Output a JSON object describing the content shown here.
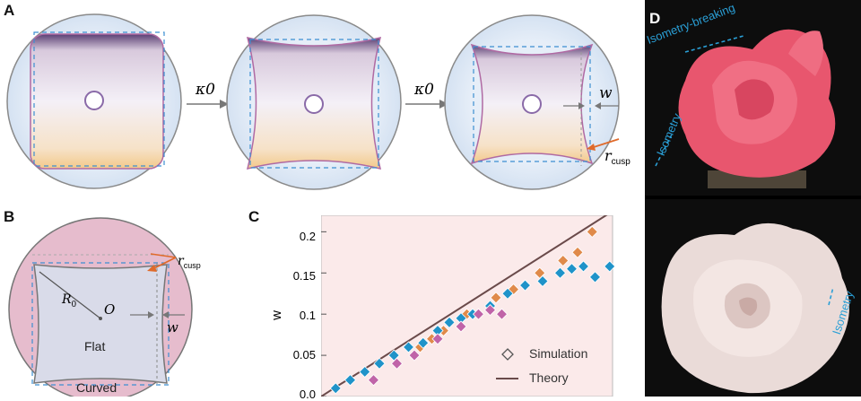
{
  "panels": {
    "a": {
      "letter": "A",
      "arrow1": "κ0",
      "arrow2": "κ0",
      "w_label": "w",
      "rcusp_main": "r",
      "rcusp_sub": "cusp"
    },
    "b": {
      "letter": "B",
      "rcusp_main": "r",
      "rcusp_sub": "cusp",
      "r0_main": "R",
      "r0_sub": "0",
      "origin": "O",
      "w_label": "w",
      "flat": "Flat",
      "curved": "Curved"
    },
    "c": {
      "letter": "C",
      "ylabel": "w",
      "yticks": [
        "0.2",
        "0.15",
        "0.1",
        "0.05",
        "0.0"
      ],
      "legend_sim": "Simulation",
      "legend_theory": "Theory"
    },
    "d": {
      "letter": "D",
      "isometry_breaking": "Isometry-breaking",
      "isometry_top": "Isometry",
      "isometry_bottom": "Isometry"
    }
  },
  "chart_data": {
    "type": "scatter",
    "ylabel": "w",
    "ylim": [
      0,
      0.22
    ],
    "xlim": [
      0,
      1
    ],
    "yticks": [
      0,
      0.05,
      0.1,
      0.15,
      0.2
    ],
    "legend": [
      "Simulation",
      "Theory"
    ],
    "legend_position": "bottom-right",
    "theory_line": {
      "x": [
        0,
        1
      ],
      "y": [
        0,
        0.225
      ]
    },
    "series": [
      {
        "color": "#e08a4a",
        "marker": "diamond",
        "points": [
          [
            0.34,
            0.06
          ],
          [
            0.38,
            0.07
          ],
          [
            0.42,
            0.08
          ],
          [
            0.5,
            0.1
          ],
          [
            0.6,
            0.12
          ],
          [
            0.66,
            0.13
          ],
          [
            0.75,
            0.15
          ],
          [
            0.83,
            0.165
          ],
          [
            0.88,
            0.175
          ],
          [
            0.93,
            0.2
          ]
        ]
      },
      {
        "color": "#1f93c9",
        "marker": "diamond",
        "points": [
          [
            0.05,
            0.01
          ],
          [
            0.1,
            0.02
          ],
          [
            0.15,
            0.03
          ],
          [
            0.2,
            0.04
          ],
          [
            0.25,
            0.05
          ],
          [
            0.3,
            0.06
          ],
          [
            0.35,
            0.065
          ],
          [
            0.4,
            0.08
          ],
          [
            0.44,
            0.09
          ],
          [
            0.48,
            0.095
          ],
          [
            0.52,
            0.1
          ],
          [
            0.58,
            0.11
          ],
          [
            0.64,
            0.125
          ],
          [
            0.7,
            0.135
          ],
          [
            0.76,
            0.14
          ],
          [
            0.82,
            0.15
          ],
          [
            0.86,
            0.155
          ],
          [
            0.9,
            0.158
          ],
          [
            0.94,
            0.145
          ],
          [
            0.99,
            0.158
          ]
        ]
      },
      {
        "color": "#c064a8",
        "marker": "diamond",
        "points": [
          [
            0.18,
            0.02
          ],
          [
            0.26,
            0.04
          ],
          [
            0.32,
            0.05
          ],
          [
            0.4,
            0.07
          ],
          [
            0.48,
            0.085
          ],
          [
            0.54,
            0.1
          ],
          [
            0.58,
            0.105
          ],
          [
            0.62,
            0.1
          ]
        ]
      }
    ]
  }
}
